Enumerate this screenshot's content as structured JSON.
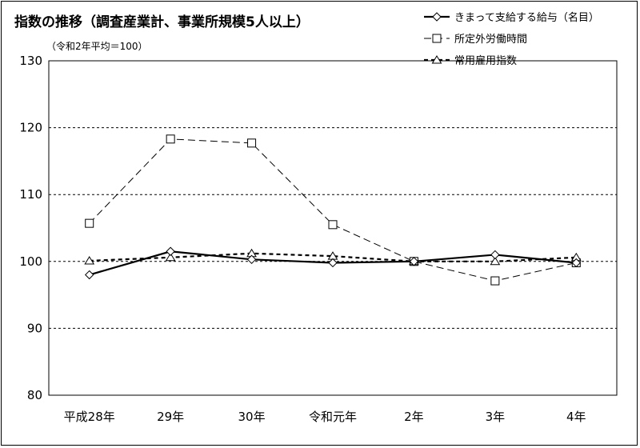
{
  "chart_data": {
    "type": "line",
    "title": "指数の推移（調査産業計、事業所規模5人以上）",
    "subtitle": "（令和2年平均＝100）",
    "xlabel": "",
    "ylabel": "",
    "categories": [
      "平成28年",
      "29年",
      "30年",
      "令和元年",
      "2年",
      "3年",
      "4年"
    ],
    "ylim": [
      80,
      130
    ],
    "yticks": [
      80,
      90,
      100,
      110,
      120,
      130
    ],
    "ytick_labels": [
      "80",
      "90",
      "100",
      "110",
      "120",
      "130"
    ],
    "grid": true,
    "legend_position": "top-right",
    "series": [
      {
        "name": "きまって支給する給与（名目）",
        "values": [
          98.0,
          101.5,
          100.3,
          99.8,
          100.0,
          101.0,
          99.8
        ],
        "marker": "diamond",
        "line": "solid-bold",
        "color": "#000000"
      },
      {
        "name": "所定外労働時間",
        "values": [
          105.7,
          118.3,
          117.7,
          105.5,
          100.0,
          97.1,
          99.8
        ],
        "marker": "square",
        "line": "dashed-thin",
        "color": "#000000"
      },
      {
        "name": "常用雇用指数",
        "values": [
          100.1,
          100.6,
          101.2,
          100.8,
          100.0,
          100.0,
          100.6
        ],
        "marker": "triangle",
        "line": "dashed-bold",
        "color": "#000000"
      }
    ]
  }
}
